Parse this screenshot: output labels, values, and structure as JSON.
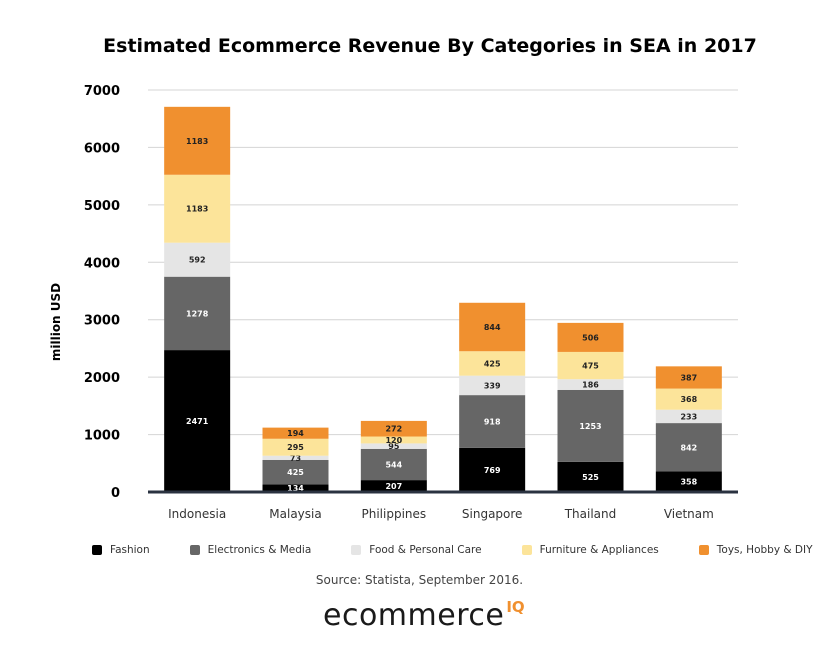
{
  "chart_data": {
    "type": "bar",
    "stacked": true,
    "title": "Estimated Ecommerce Revenue By Categories in SEA in 2017",
    "xlabel": "",
    "ylabel": "million USD",
    "ylim": [
      0,
      7000
    ],
    "yticks": [
      0,
      1000,
      2000,
      3000,
      4000,
      5000,
      6000,
      7000
    ],
    "grid": true,
    "legend_position": "bottom",
    "categories": [
      "Indonesia",
      "Malaysia",
      "Philippines",
      "Singapore",
      "Thailand",
      "Vietnam"
    ],
    "series": [
      {
        "name": "Fashion",
        "color": "#000000",
        "label_color": "#ffffff",
        "values": [
          2471,
          134,
          207,
          769,
          525,
          358
        ]
      },
      {
        "name": "Electronics & Media",
        "color": "#666666",
        "label_color": "#ffffff",
        "values": [
          1278,
          425,
          544,
          918,
          1253,
          842
        ]
      },
      {
        "name": "Food & Personal Care",
        "color": "#e5e5e5",
        "label_color": "#222222",
        "values": [
          592,
          73,
          95,
          339,
          186,
          233
        ]
      },
      {
        "name": "Furniture & Appliances",
        "color": "#fce49a",
        "label_color": "#222222",
        "values": [
          1183,
          295,
          120,
          425,
          475,
          368
        ]
      },
      {
        "name": "Toys, Hobby & DIY",
        "color": "#f0902f",
        "label_color": "#222222",
        "values": [
          1183,
          194,
          272,
          844,
          506,
          387
        ]
      }
    ]
  },
  "source": "Source: Statista, September 2016.",
  "logo": {
    "text": "ecommerce",
    "superscript": "IQ"
  }
}
